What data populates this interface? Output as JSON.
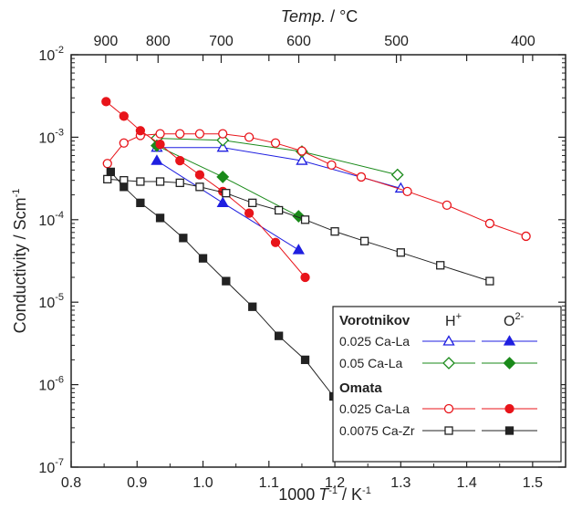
{
  "chart_data": {
    "type": "scatter",
    "xlabel": "1000",
    "xlabel_italic": "T",
    "xlabel_sup": "-1",
    "xlabel_unit": " / K",
    "xlabel_unit_sup": "-1",
    "ylabel": "Conductivity / Scm",
    "ylabel_sup": "-1",
    "top_axis_label_italic": "Temp.",
    "top_axis_label_unit": " / °C",
    "xlim": [
      0.8,
      1.55
    ],
    "ylim": [
      1e-07,
      0.01
    ],
    "yscale": "log",
    "x_ticks": [
      "0.8",
      "0.9",
      "1.0",
      "1.1",
      "1.2",
      "1.3",
      "1.4",
      "1.5"
    ],
    "y_ticks": [
      {
        "base": "10",
        "exp": "-7"
      },
      {
        "base": "10",
        "exp": "-6"
      },
      {
        "base": "10",
        "exp": "-5"
      },
      {
        "base": "10",
        "exp": "-4"
      },
      {
        "base": "10",
        "exp": "-3"
      },
      {
        "base": "10",
        "exp": "-2"
      }
    ],
    "top_ticks": [
      "900",
      "800",
      "700",
      "600",
      "500",
      "400"
    ],
    "legend_position": "bottom-right",
    "legend": {
      "group1": "Vorotnikov",
      "group2": "Omata",
      "col_h": "H",
      "col_h_sup": "+",
      "col_o": "O",
      "col_o_sup": "2-",
      "rows": [
        "0.025 Ca-La",
        "0.05 Ca-La",
        "0.025 Ca-La",
        "0.0075 Ca-Zr"
      ]
    },
    "series": [
      {
        "name": "Vorotnikov 0.025 Ca-La H+",
        "color": "#1f1fe0",
        "marker": "triangle",
        "filled": false,
        "x": [
          0.93,
          1.03,
          1.15,
          1.3
        ],
        "y": [
          0.00075,
          0.00075,
          0.00052,
          0.00024
        ]
      },
      {
        "name": "Vorotnikov 0.025 Ca-La O2-",
        "color": "#1f1fe0",
        "marker": "triangle",
        "filled": true,
        "x": [
          0.93,
          1.03,
          1.145
        ],
        "y": [
          0.00052,
          0.00016,
          4.3e-05
        ]
      },
      {
        "name": "Vorotnikov 0.05 Ca-La H+",
        "color": "#1a8a1a",
        "marker": "diamond",
        "filled": false,
        "x": [
          0.93,
          1.03,
          1.15,
          1.295
        ],
        "y": [
          0.00097,
          0.00092,
          0.00067,
          0.00035
        ]
      },
      {
        "name": "Vorotnikov 0.05 Ca-La O2-",
        "color": "#1a8a1a",
        "marker": "diamond",
        "filled": true,
        "x": [
          0.93,
          1.03,
          1.145
        ],
        "y": [
          0.00079,
          0.00033,
          0.00011
        ]
      },
      {
        "name": "Omata 0.025 Ca-La H+",
        "color": "#e8141a",
        "marker": "circle",
        "filled": false,
        "x": [
          0.855,
          0.88,
          0.905,
          0.935,
          0.965,
          0.995,
          1.03,
          1.07,
          1.11,
          1.15,
          1.195,
          1.24,
          1.31,
          1.37,
          1.435,
          1.49
        ],
        "y": [
          0.00048,
          0.00085,
          0.00105,
          0.0011,
          0.0011,
          0.0011,
          0.0011,
          0.001,
          0.00085,
          0.00068,
          0.00046,
          0.00033,
          0.00022,
          0.00015,
          9e-05,
          6.3e-05
        ]
      },
      {
        "name": "Omata 0.025 Ca-La O2-",
        "color": "#e8141a",
        "marker": "circle",
        "filled": true,
        "x": [
          0.853,
          0.88,
          0.905,
          0.935,
          0.965,
          0.995,
          1.03,
          1.07,
          1.11,
          1.155
        ],
        "y": [
          0.0027,
          0.0018,
          0.0012,
          0.00082,
          0.00052,
          0.00035,
          0.00022,
          0.00012,
          5.3e-05,
          2e-05
        ]
      },
      {
        "name": "Omata 0.0075 Ca-Zr H+",
        "color": "#222222",
        "marker": "square",
        "filled": false,
        "x": [
          0.855,
          0.88,
          0.905,
          0.935,
          0.965,
          0.995,
          1.035,
          1.075,
          1.115,
          1.155,
          1.2,
          1.245,
          1.3,
          1.36,
          1.435
        ],
        "y": [
          0.00031,
          0.0003,
          0.00029,
          0.00029,
          0.00028,
          0.00025,
          0.00021,
          0.00016,
          0.00013,
          0.0001,
          7.2e-05,
          5.5e-05,
          4e-05,
          2.8e-05,
          1.8e-05
        ]
      },
      {
        "name": "Omata 0.0075 Ca-Zr O2-",
        "color": "#222222",
        "marker": "square",
        "filled": true,
        "x": [
          0.86,
          0.88,
          0.905,
          0.935,
          0.97,
          1.0,
          1.035,
          1.075,
          1.115,
          1.155,
          1.198
        ],
        "y": [
          0.00038,
          0.00025,
          0.00016,
          0.000105,
          6e-05,
          3.4e-05,
          1.8e-05,
          8.8e-06,
          3.9e-06,
          2e-06,
          7.2e-07
        ]
      }
    ]
  }
}
